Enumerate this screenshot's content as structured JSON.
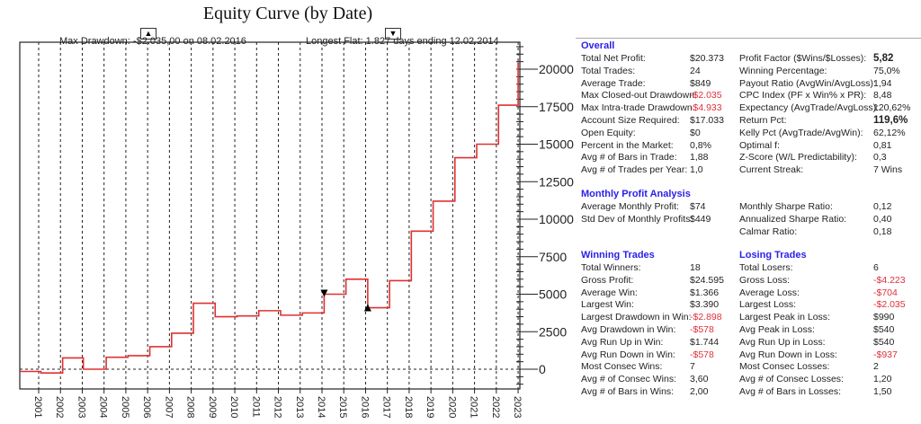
{
  "chart_data": {
    "type": "line",
    "title": "Equity Curve (by Date)",
    "annotations": {
      "max_drawdown": "Max Drawdown: -$2.035,00 on 08.02.2016",
      "longest_flat": "Longest Flat: 1.827 days ending 12.02.2014"
    },
    "xlim": [
      2000.1,
      2023.0
    ],
    "ylim": [
      -1300,
      21800
    ],
    "x_ticks": [
      2001,
      2002,
      2003,
      2004,
      2005,
      2006,
      2007,
      2008,
      2009,
      2010,
      2011,
      2012,
      2013,
      2014,
      2015,
      2016,
      2017,
      2018,
      2019,
      2020,
      2021,
      2022,
      2023
    ],
    "y_ticks": [
      0,
      2500,
      5000,
      7500,
      10000,
      12500,
      15000,
      17500,
      20000
    ],
    "grid": "vertical dashed per year; dashed zero line",
    "line_color": "#e03030",
    "steps": [
      [
        2000.1,
        -150
      ],
      [
        2001.1,
        -250
      ],
      [
        2002.1,
        750
      ],
      [
        2003.05,
        0
      ],
      [
        2004.1,
        800
      ],
      [
        2005.1,
        900
      ],
      [
        2006.1,
        1500
      ],
      [
        2007.1,
        2400
      ],
      [
        2008.1,
        4400
      ],
      [
        2009.1,
        3500
      ],
      [
        2010.1,
        3550
      ],
      [
        2011.1,
        3900
      ],
      [
        2012.1,
        3600
      ],
      [
        2013.1,
        3750
      ],
      [
        2014.1,
        5000
      ],
      [
        2015.1,
        6000
      ],
      [
        2016.1,
        4100
      ],
      [
        2017.1,
        5900
      ],
      [
        2018.1,
        9200
      ],
      [
        2019.1,
        11200
      ],
      [
        2020.1,
        14100
      ],
      [
        2021.1,
        15000
      ],
      [
        2022.1,
        17600
      ],
      [
        2023.0,
        20400
      ]
    ],
    "markers": [
      {
        "type": "triangle-down",
        "x": 2014.1,
        "y": 5000
      },
      {
        "type": "triangle-up",
        "x": 2016.1,
        "y": 4100
      }
    ]
  },
  "stats": {
    "overall": {
      "title": "Overall",
      "rows": [
        [
          "Total Net Profit:",
          "$20.373",
          "Profit Factor ($Wins/$Losses):",
          "5,82"
        ],
        [
          "Total Trades:",
          "24",
          "Winning Percentage:",
          "75,0%"
        ],
        [
          "Average Trade:",
          "$849",
          "Payout Ratio (AvgWin/AvgLoss):",
          "1,94"
        ],
        [
          "Max Closed-out Drawdown:",
          "-$2.035",
          "CPC Index (PF x Win% x PR):",
          "8,48"
        ],
        [
          "Max Intra-trade Drawdown:",
          "-$4.933",
          "Expectancy (AvgTrade/AvgLoss):",
          "120,62%"
        ],
        [
          "Account Size Required:",
          "$17.033",
          "Return Pct:",
          "119,6%"
        ],
        [
          "Open Equity:",
          "$0",
          "Kelly Pct (AvgTrade/AvgWin):",
          "62,12%"
        ],
        [
          "Percent in the Market:",
          "0,8%",
          "Optimal f:",
          "0,81"
        ],
        [
          "Avg # of Bars in Trade:",
          "1,88",
          "Z-Score (W/L Predictability):",
          "0,3"
        ],
        [
          "Avg # of Trades per Year:",
          "1,0",
          "Current Streak:",
          "7 Wins"
        ]
      ]
    },
    "monthly": {
      "title": "Monthly Profit Analysis",
      "rows": [
        [
          "Average Monthly Profit:",
          "$74",
          "Monthly Sharpe Ratio:",
          "0,12"
        ],
        [
          "Std Dev of Monthly Profits:",
          "$449",
          "Annualized Sharpe Ratio:",
          "0,40"
        ],
        [
          "",
          "",
          "Calmar Ratio:",
          "0,18"
        ]
      ]
    },
    "trades": {
      "title_win": "Winning Trades",
      "title_loss": "Losing Trades",
      "rows": [
        [
          "Total Winners:",
          "18",
          "Total Losers:",
          "6"
        ],
        [
          "Gross Profit:",
          "$24.595",
          "Gross Loss:",
          "-$4.223"
        ],
        [
          "Average Win:",
          "$1.366",
          "Average Loss:",
          "-$704"
        ],
        [
          "Largest Win:",
          "$3.390",
          "Largest Loss:",
          "-$2.035"
        ],
        [
          "Largest Drawdown in Win:",
          "-$2.898",
          "Largest Peak in Loss:",
          "$990"
        ],
        [
          "Avg Drawdown in Win:",
          "-$578",
          "Avg Peak in Loss:",
          "$540"
        ],
        [
          "Avg Run Up in Win:",
          "$1.744",
          "Avg Run Up in Loss:",
          "$540"
        ],
        [
          "Avg Run Down in Win:",
          "-$578",
          "Avg Run Down in Loss:",
          "-$937"
        ],
        [
          "Most Consec Wins:",
          "7",
          "Most Consec Losses:",
          "2"
        ],
        [
          "Avg # of Consec Wins:",
          "3,60",
          "Avg # of Consec Losses:",
          "1,20"
        ],
        [
          "Avg # of Bars in Wins:",
          "2,00",
          "Avg # of Bars in Losses:",
          "1,50"
        ]
      ]
    },
    "bold_values": [
      "5,82",
      "119,6%"
    ],
    "negative_color": "#e0303a",
    "header_color": "#2a1fe8"
  }
}
